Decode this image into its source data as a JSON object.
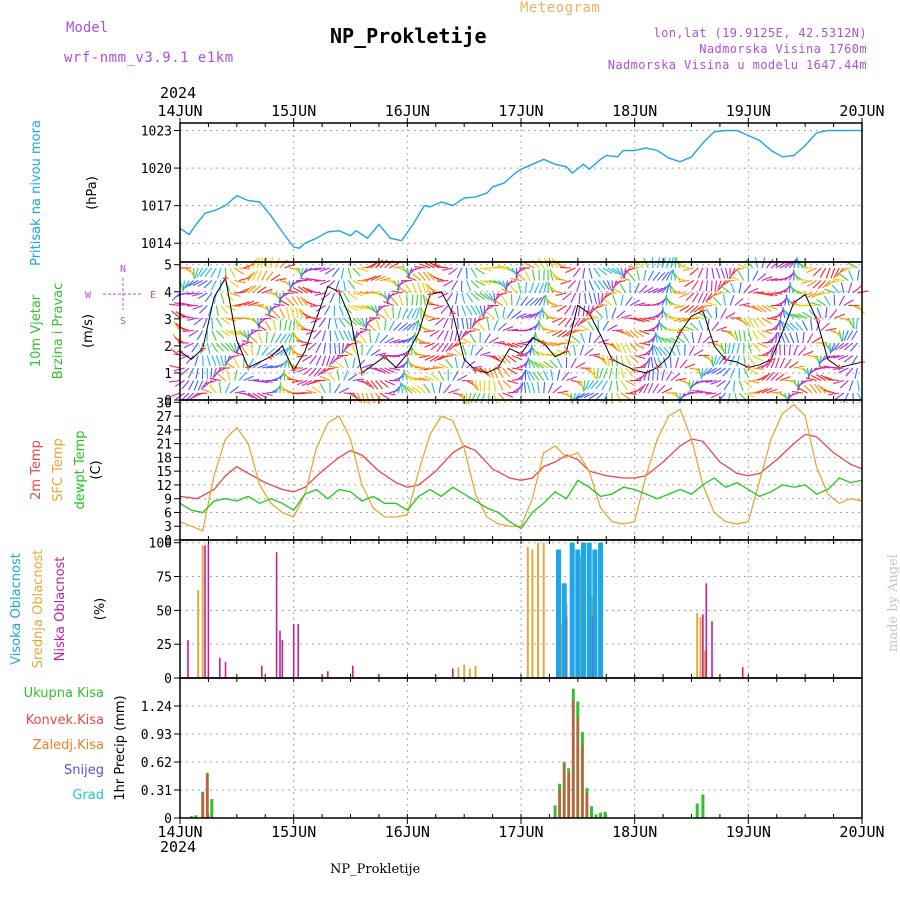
{
  "header": {
    "model_label": "Model",
    "model_name": "wrf-nmm_v3.9.1 e1km",
    "title": "NP_Prokletije",
    "meteogram_label": "Meteogram",
    "coords": "lon,lat (19.9125E, 42.5312N)",
    "altitude": "Nadmorska Visina 1760m",
    "model_altitude": "Nadmorska Visina u modelu 1647.44m",
    "year_top": "2024",
    "year_bottom": "2024"
  },
  "footer": {
    "station": "NP_Prokletije",
    "credit": "made by Angel"
  },
  "colors": {
    "pressure": "#1da6e8",
    "temp2m": "#e84848",
    "sfc": "#e8a838",
    "dewpt": "#20c820",
    "high_cloud": "#1da6e8",
    "mid_cloud": "#e8a838",
    "low_cloud": "#c020a0",
    "total_precip": "#30c030",
    "conv_precip": "#e84848",
    "frozen_precip": "#f08020",
    "snow": "#5050e0",
    "hail": "#20c8c8",
    "wind_legend": "#b050d8"
  },
  "time_axis": {
    "tick_labels": [
      "14JUN",
      "15JUN",
      "16JUN",
      "17JUN",
      "18JUN",
      "19JUN",
      "20JUN"
    ],
    "days": 6
  },
  "chart_data": [
    {
      "type": "line",
      "id": "pressure",
      "ylabel": "Pritisak na nivou mora",
      "unit": "(hPa)",
      "ylim": [
        1012.5,
        1023.6
      ],
      "yticks": [
        1014,
        1017,
        1020,
        1023
      ],
      "grid": true,
      "series": [
        {
          "color": "#1da6e8",
          "x": [
            0,
            0.08,
            0.15,
            0.22,
            0.3,
            0.4,
            0.5,
            0.6,
            0.7,
            0.8,
            0.9,
            0.95,
            1.0,
            1.05,
            1.1,
            1.2,
            1.3,
            1.4,
            1.5,
            1.55,
            1.65,
            1.75,
            1.85,
            1.95,
            2.05,
            2.15,
            2.2,
            2.3,
            2.4,
            2.5,
            2.6,
            2.7,
            2.75,
            2.85,
            2.95,
            3.0,
            3.1,
            3.2,
            3.3,
            3.4,
            3.45,
            3.55,
            3.6,
            3.7,
            3.75,
            3.85,
            3.9,
            4.0,
            4.1,
            4.2,
            4.3,
            4.4,
            4.5,
            4.6,
            4.7,
            4.8,
            4.9,
            5.0,
            5.1,
            5.2,
            5.3,
            5.4,
            5.5,
            5.6,
            5.7,
            5.8,
            5.9,
            5.95,
            6.0
          ],
          "y": [
            1015.2,
            1014.7,
            1015.6,
            1016.4,
            1016.6,
            1017.0,
            1017.8,
            1017.4,
            1017.3,
            1016.2,
            1014.9,
            1014.3,
            1013.7,
            1013.6,
            1014.0,
            1014.4,
            1014.9,
            1015.0,
            1014.6,
            1015.0,
            1014.4,
            1015.5,
            1014.4,
            1014.2,
            1015.5,
            1017.0,
            1016.9,
            1017.3,
            1017.0,
            1017.6,
            1017.7,
            1018.0,
            1018.5,
            1018.8,
            1019.6,
            1019.9,
            1020.3,
            1020.7,
            1020.3,
            1020.1,
            1019.6,
            1020.3,
            1019.9,
            1020.7,
            1021.0,
            1020.9,
            1021.4,
            1021.4,
            1021.6,
            1021.4,
            1020.8,
            1020.5,
            1020.9,
            1022.0,
            1022.9,
            1023.0,
            1023.0,
            1022.6,
            1022.2,
            1021.4,
            1020.9,
            1021.0,
            1021.8,
            1022.8,
            1023.0,
            1023.0,
            1023.0,
            1023.0,
            1023.0
          ]
        }
      ]
    },
    {
      "type": "scatter",
      "id": "wind",
      "ylabel": "10m Vjetar Brzina i Pravac",
      "unit": "(m/s)",
      "ylim": [
        0,
        5.1
      ],
      "yticks": [
        0,
        1,
        2,
        3,
        4,
        5
      ],
      "grid": true,
      "legend": {
        "n": "N",
        "e": "E",
        "w": "W",
        "s": "S"
      },
      "series": [
        {
          "name": "speed",
          "x": [
            0,
            0.1,
            0.2,
            0.3,
            0.4,
            0.5,
            0.6,
            0.7,
            0.8,
            0.9,
            1.0,
            1.1,
            1.2,
            1.3,
            1.4,
            1.5,
            1.6,
            1.7,
            1.8,
            1.9,
            2.0,
            2.1,
            2.2,
            2.3,
            2.4,
            2.5,
            2.6,
            2.7,
            2.8,
            2.9,
            3.0,
            3.1,
            3.2,
            3.3,
            3.4,
            3.5,
            3.6,
            3.7,
            3.8,
            3.9,
            4.0,
            4.1,
            4.2,
            4.3,
            4.4,
            4.5,
            4.6,
            4.7,
            4.8,
            4.9,
            5.0,
            5.1,
            5.2,
            5.3,
            5.4,
            5.5,
            5.6,
            5.7,
            5.8,
            5.9,
            6.0
          ],
          "y": [
            1.8,
            1.5,
            1.9,
            3.8,
            4.5,
            2.2,
            1.2,
            1.4,
            1.6,
            2.0,
            1.1,
            1.8,
            3.0,
            4.2,
            4.0,
            3.0,
            1.0,
            1.3,
            1.6,
            1.2,
            1.7,
            2.5,
            3.9,
            4.0,
            3.2,
            1.5,
            1.1,
            1.0,
            1.2,
            1.9,
            1.7,
            2.3,
            2.1,
            1.6,
            1.8,
            3.5,
            3.2,
            2.4,
            1.5,
            1.3,
            1.1,
            1.0,
            1.2,
            1.6,
            2.5,
            3.1,
            3.3,
            2.0,
            1.5,
            1.4,
            1.2,
            1.3,
            1.5,
            2.5,
            3.6,
            3.9,
            3.0,
            1.5,
            1.2,
            1.3,
            1.4
          ]
        }
      ]
    },
    {
      "type": "line",
      "id": "temperature",
      "ylabel": "2m Temp / SFC Temp / dewpt Temp",
      "unit": "(C)",
      "ylim": [
        0,
        30.5
      ],
      "yticks": [
        0,
        3,
        6,
        9,
        12,
        15,
        18,
        21,
        24,
        27,
        30
      ],
      "grid": true,
      "series": [
        {
          "name": "2m Temp",
          "color": "#e84848",
          "x": [
            0,
            0.15,
            0.3,
            0.4,
            0.5,
            0.6,
            0.75,
            0.9,
            1.0,
            1.1,
            1.25,
            1.4,
            1.5,
            1.6,
            1.75,
            1.9,
            2.0,
            2.1,
            2.25,
            2.4,
            2.5,
            2.6,
            2.75,
            2.9,
            3.0,
            3.1,
            3.2,
            3.3,
            3.4,
            3.5,
            3.6,
            3.75,
            3.9,
            4.0,
            4.1,
            4.25,
            4.4,
            4.5,
            4.6,
            4.75,
            4.9,
            5.0,
            5.1,
            5.25,
            5.4,
            5.5,
            5.6,
            5.75,
            5.9,
            6.0
          ],
          "y": [
            9.5,
            9.0,
            11.0,
            14.0,
            16.0,
            14.5,
            12.5,
            11.0,
            10.5,
            11.5,
            15.0,
            18.0,
            19.5,
            18.5,
            15.0,
            12.5,
            11.5,
            12.0,
            15.0,
            19.0,
            20.5,
            19.5,
            15.5,
            13.5,
            13.0,
            13.5,
            16.0,
            17.0,
            18.5,
            17.5,
            15.0,
            14.0,
            13.5,
            13.5,
            14.0,
            17.0,
            20.5,
            22.0,
            21.5,
            17.0,
            14.5,
            14.0,
            14.5,
            17.5,
            21.0,
            23.0,
            22.5,
            19.0,
            16.5,
            15.5
          ]
        },
        {
          "name": "SFC Temp",
          "color": "#e8a838",
          "x": [
            0,
            0.1,
            0.2,
            0.3,
            0.4,
            0.5,
            0.6,
            0.7,
            0.8,
            0.9,
            1.0,
            1.1,
            1.2,
            1.3,
            1.4,
            1.5,
            1.6,
            1.7,
            1.8,
            1.9,
            2.0,
            2.1,
            2.2,
            2.3,
            2.4,
            2.5,
            2.6,
            2.7,
            2.8,
            2.9,
            3.0,
            3.1,
            3.2,
            3.3,
            3.4,
            3.5,
            3.6,
            3.7,
            3.8,
            3.9,
            4.0,
            4.1,
            4.2,
            4.3,
            4.4,
            4.5,
            4.6,
            4.7,
            4.8,
            4.9,
            5.0,
            5.1,
            5.2,
            5.3,
            5.4,
            5.5,
            5.6,
            5.7,
            5.8,
            5.9,
            6.0
          ],
          "y": [
            4.0,
            3.0,
            2.0,
            14.0,
            22.0,
            24.5,
            21.0,
            12.0,
            8.0,
            6.0,
            5.0,
            10.0,
            20.0,
            25.5,
            27.0,
            22.0,
            12.0,
            7.0,
            5.0,
            5.0,
            5.5,
            15.0,
            23.0,
            27.0,
            26.0,
            20.0,
            10.0,
            5.0,
            3.5,
            3.0,
            3.0,
            9.0,
            19.0,
            20.5,
            18.0,
            19.0,
            15.0,
            7.0,
            4.0,
            3.5,
            4.0,
            14.0,
            22.0,
            27.0,
            28.5,
            22.0,
            12.0,
            6.0,
            4.0,
            3.5,
            4.0,
            13.0,
            22.0,
            27.5,
            29.5,
            27.0,
            16.0,
            10.0,
            8.0,
            9.0,
            8.5
          ]
        },
        {
          "name": "dewpt Temp",
          "color": "#20c820",
          "x": [
            0,
            0.1,
            0.2,
            0.3,
            0.4,
            0.5,
            0.6,
            0.7,
            0.8,
            0.9,
            1.0,
            1.1,
            1.2,
            1.3,
            1.4,
            1.5,
            1.6,
            1.7,
            1.8,
            1.9,
            2.0,
            2.1,
            2.2,
            2.3,
            2.4,
            2.5,
            2.6,
            2.7,
            2.8,
            2.9,
            3.0,
            3.1,
            3.2,
            3.3,
            3.4,
            3.5,
            3.6,
            3.7,
            3.8,
            3.9,
            4.0,
            4.1,
            4.2,
            4.3,
            4.4,
            4.5,
            4.6,
            4.7,
            4.8,
            4.9,
            5.0,
            5.1,
            5.2,
            5.3,
            5.4,
            5.5,
            5.6,
            5.7,
            5.8,
            5.9,
            6.0
          ],
          "y": [
            8.0,
            6.5,
            6.0,
            8.5,
            9.0,
            8.5,
            9.5,
            8.0,
            9.0,
            8.0,
            6.5,
            10.0,
            11.0,
            9.0,
            11.0,
            10.5,
            8.5,
            9.5,
            8.0,
            8.0,
            6.5,
            9.5,
            11.0,
            9.5,
            11.5,
            10.0,
            8.5,
            7.0,
            6.0,
            4.0,
            2.5,
            6.0,
            8.0,
            10.5,
            9.0,
            13.0,
            11.5,
            9.5,
            10.0,
            11.5,
            11.0,
            10.0,
            9.0,
            10.0,
            11.0,
            10.0,
            12.0,
            13.5,
            11.5,
            12.5,
            11.0,
            9.5,
            10.5,
            12.0,
            11.5,
            12.0,
            10.0,
            11.0,
            13.5,
            12.5,
            13.0
          ]
        }
      ]
    },
    {
      "type": "bar",
      "id": "clouds",
      "ylabel": "Visoka Oblacnost / Srednja Oblacnost / Niska Oblacnost",
      "unit": "(%)",
      "ylim": [
        0,
        102
      ],
      "yticks": [
        0,
        25,
        50,
        75,
        100
      ],
      "grid": true,
      "series": [
        {
          "name": "Visoka Oblacnost",
          "color": "#1da6e8",
          "x": [
            3.33,
            3.38,
            3.45,
            3.5,
            3.55,
            3.6,
            3.65,
            3.7
          ],
          "values": [
            95,
            70,
            100,
            95,
            100,
            100,
            95,
            100
          ]
        },
        {
          "name": "Srednja Oblacnost",
          "color": "#e8a838",
          "x": [
            0.16,
            0.2,
            3.06,
            3.1,
            3.15,
            3.2,
            3.35,
            3.4,
            3.45,
            3.52,
            3.56,
            3.62,
            4.55,
            4.58,
            4.62,
            2.45,
            2.5,
            2.55,
            2.6
          ],
          "values": [
            65,
            98,
            97,
            95,
            100,
            100,
            40,
            55,
            80,
            90,
            85,
            60,
            48,
            45,
            20,
            8,
            10,
            7,
            9
          ]
        },
        {
          "name": "Niska Oblacnost",
          "color": "#c020a0",
          "x": [
            0.07,
            0.22,
            0.25,
            0.35,
            0.4,
            0.72,
            0.85,
            0.88,
            0.9,
            1.0,
            1.04,
            1.3,
            1.52,
            2.4,
            3.4,
            3.45,
            3.5,
            3.56,
            3.63,
            4.6,
            4.63,
            4.68,
            4.95
          ],
          "values": [
            28,
            98,
            99,
            15,
            12,
            9,
            93,
            35,
            28,
            40,
            40,
            5,
            9,
            7,
            45,
            65,
            80,
            85,
            45,
            47,
            70,
            42,
            8
          ]
        }
      ]
    },
    {
      "type": "bar",
      "id": "precip",
      "ylabel": "1hr Precip",
      "unit": "(mm)",
      "ylim": [
        0,
        1.55
      ],
      "yticks": [
        0,
        0.31,
        0.62,
        0.93,
        1.24
      ],
      "grid": true,
      "legend": [
        "Ukupna Kisa",
        "Konvek.Kisa",
        "Zaledj.Kisa",
        "Snijeg",
        "Grad"
      ],
      "series": [
        {
          "name": "Ukupna Kisa",
          "color": "#30c030",
          "x": [
            0.1,
            0.14,
            0.2,
            0.24,
            0.28,
            3.3,
            3.34,
            3.38,
            3.42,
            3.46,
            3.5,
            3.54,
            3.58,
            3.62,
            3.66,
            3.7,
            3.74,
            4.55,
            4.6
          ],
          "values": [
            0.02,
            0.03,
            0.29,
            0.5,
            0.21,
            0.14,
            0.38,
            0.62,
            0.55,
            1.43,
            1.29,
            0.95,
            0.33,
            0.13,
            0.04,
            0.06,
            0.07,
            0.16,
            0.26
          ]
        },
        {
          "name": "Konvek.Kisa",
          "color": "#e84848",
          "x": [
            0.2,
            0.24,
            3.34,
            3.38,
            3.42,
            3.46,
            3.5,
            3.54,
            3.58
          ],
          "values": [
            0.27,
            0.48,
            0.32,
            0.6,
            0.5,
            1.3,
            1.1,
            0.8,
            0.28
          ]
        }
      ]
    }
  ]
}
